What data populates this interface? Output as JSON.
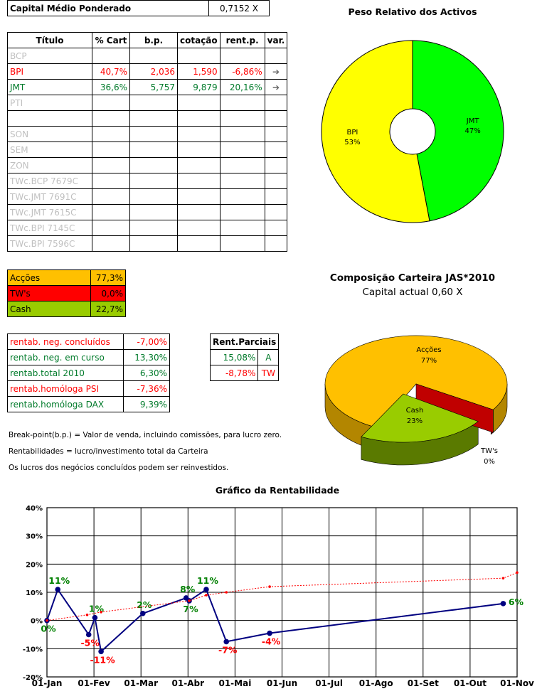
{
  "capital": {
    "label": "Capital Médio Ponderado",
    "value": "0,7152 X"
  },
  "portfolio_table": {
    "headers": [
      "Título",
      "% Cart",
      "b.p.",
      "cotação",
      "rent.p.",
      "var."
    ],
    "rows": [
      {
        "titulo": "BCP",
        "cart": "",
        "bp": "",
        "cot": "",
        "rent": "",
        "var": "",
        "style": "grey"
      },
      {
        "titulo": "BPI",
        "cart": "40,7%",
        "bp": "2,036",
        "cot": "1,590",
        "rent": "-6,86%",
        "var": "➔",
        "style": "red"
      },
      {
        "titulo": "JMT",
        "cart": "36,6%",
        "bp": "5,757",
        "cot": "9,879",
        "rent": "20,16%",
        "var": "➔",
        "style": "green"
      },
      {
        "titulo": "PTI",
        "cart": "",
        "bp": "",
        "cot": "",
        "rent": "",
        "var": "",
        "style": "grey"
      },
      {
        "titulo": "",
        "cart": "",
        "bp": "",
        "cot": "",
        "rent": "",
        "var": "",
        "style": "grey"
      },
      {
        "titulo": "SON",
        "cart": "",
        "bp": "",
        "cot": "",
        "rent": "",
        "var": "",
        "style": "grey"
      },
      {
        "titulo": "SEM",
        "cart": "",
        "bp": "",
        "cot": "",
        "rent": "",
        "var": "",
        "style": "grey"
      },
      {
        "titulo": "ZON",
        "cart": "",
        "bp": "",
        "cot": "",
        "rent": "",
        "var": "",
        "style": "grey"
      },
      {
        "titulo": "TWc.BCP 7679C",
        "cart": "",
        "bp": "",
        "cot": "",
        "rent": "",
        "var": "",
        "style": "grey"
      },
      {
        "titulo": "TWc.JMT 7691C",
        "cart": "",
        "bp": "",
        "cot": "",
        "rent": "",
        "var": "",
        "style": "grey"
      },
      {
        "titulo": "TWc.JMT 7615C",
        "cart": "",
        "bp": "",
        "cot": "",
        "rent": "",
        "var": "",
        "style": "grey"
      },
      {
        "titulo": "TWc.BPI 7145C",
        "cart": "",
        "bp": "",
        "cot": "",
        "rent": "",
        "var": "",
        "style": "grey"
      },
      {
        "titulo": "TWc.BPI 7596C",
        "cart": "",
        "bp": "",
        "cot": "",
        "rent": "",
        "var": "",
        "style": "grey"
      }
    ]
  },
  "allocation": [
    {
      "label": "Acções",
      "value": "77,3%",
      "color": "#ffc000"
    },
    {
      "label": "TW's",
      "value": "0,0%",
      "color": "#ff0000"
    },
    {
      "label": "Cash",
      "value": "22,7%",
      "color": "#99cc00"
    }
  ],
  "returns": [
    {
      "label": "rentab. neg. concluídos",
      "value": "-7,00%",
      "style": "red"
    },
    {
      "label": "rentab. neg. em curso",
      "value": "13,30%",
      "style": "green"
    },
    {
      "label": "rentab.total 2010",
      "value": "6,30%",
      "style": "green"
    },
    {
      "label": "rentab.homóloga PSI",
      "value": "-7,36%",
      "style": "red"
    },
    {
      "label": "rentab.homóloga DAX",
      "value": "9,39%",
      "style": "green"
    }
  ],
  "partials": {
    "header": "Rent.Parciais",
    "rows": [
      {
        "value": "15,08%",
        "tag": "A",
        "style": "green"
      },
      {
        "value": "-8,78%",
        "tag": "TW",
        "style": "red"
      }
    ]
  },
  "notes": [
    "Break-point(b.p.) = Valor de venda, incluindo comissões, para lucro zero.",
    "Rentabilidades = lucro/investimento total da Carteira",
    "Os lucros dos negócios concluídos podem ser reinvestidos."
  ],
  "chart_data": [
    {
      "type": "pie",
      "title": "Peso Relativo dos Activos",
      "slices": [
        {
          "label": "JMT",
          "value": 47,
          "text": "47%",
          "color": "#00ff00"
        },
        {
          "label": "BPI",
          "value": 53,
          "text": "53%",
          "color": "#ffff00"
        }
      ]
    },
    {
      "type": "pie",
      "title": "Composição Carteira JAS*2010",
      "subtitle": "Capital actual 0,60 X",
      "slices": [
        {
          "label": "Acções",
          "value": 77,
          "text": "77%",
          "color": "#ffc000"
        },
        {
          "label": "TW's",
          "value": 0,
          "text": "0%",
          "color": "#c00000"
        },
        {
          "label": "Cash",
          "value": 23,
          "text": "23%",
          "color": "#99cc00"
        }
      ]
    },
    {
      "type": "line",
      "title": "Gráfico da Rentabilidade",
      "x_ticks": [
        "01-Jan",
        "01-Fev",
        "01-Mar",
        "01-Abr",
        "01-Mai",
        "01-Jun",
        "01-Jul",
        "01-Ago",
        "01-Set",
        "01-Out",
        "01-Nov"
      ],
      "y_ticks": [
        "40%",
        "30%",
        "20%",
        "10%",
        "0%",
        "-10%",
        "-20%"
      ],
      "ylim": [
        -20,
        40
      ],
      "xlim": [
        "2010-01-01",
        "2010-11-01"
      ],
      "grid": true,
      "series": [
        {
          "color": "#000080",
          "points": [
            {
              "x": "2010-01-01",
              "y": 0,
              "label": "0%",
              "lc": "#008000"
            },
            {
              "x": "2010-01-08",
              "y": 11,
              "label": "11%",
              "lc": "#008000"
            },
            {
              "x": "2010-01-28",
              "y": -5,
              "label": "-5%",
              "lc": "#ff0000"
            },
            {
              "x": "2010-02-01",
              "y": 1,
              "label": "1%",
              "lc": "#008000"
            },
            {
              "x": "2010-02-05",
              "y": -11,
              "label": "-11%",
              "lc": "#ff0000"
            },
            {
              "x": "2010-03-04",
              "y": 2.5,
              "label": "2%",
              "lc": "#008000"
            },
            {
              "x": "2010-04-01",
              "y": 8,
              "label": "8%",
              "lc": "#008000"
            },
            {
              "x": "2010-04-03",
              "y": 7,
              "label": "7%",
              "lc": "#008000"
            },
            {
              "x": "2010-04-14",
              "y": 11,
              "label": "11%",
              "lc": "#008000"
            },
            {
              "x": "2010-04-27",
              "y": -7.5,
              "label": "-7%",
              "lc": "#ff0000"
            },
            {
              "x": "2010-05-25",
              "y": -4.5,
              "label": "-4%",
              "lc": "#ff0000"
            },
            {
              "x": "2010-10-23",
              "y": 6,
              "label": "6%",
              "lc": "#008000"
            }
          ]
        },
        {
          "color": "#ff0000",
          "dashed": true,
          "points": [
            {
              "x": "2010-01-01",
              "y": 0
            },
            {
              "x": "2010-01-27",
              "y": 2
            },
            {
              "x": "2010-02-05",
              "y": 3
            },
            {
              "x": "2010-04-03",
              "y": 7
            },
            {
              "x": "2010-04-14",
              "y": 9
            },
            {
              "x": "2010-04-27",
              "y": 10
            },
            {
              "x": "2010-05-25",
              "y": 12
            },
            {
              "x": "2010-10-23",
              "y": 15
            },
            {
              "x": "2010-11-01",
              "y": 17
            }
          ]
        }
      ]
    }
  ]
}
